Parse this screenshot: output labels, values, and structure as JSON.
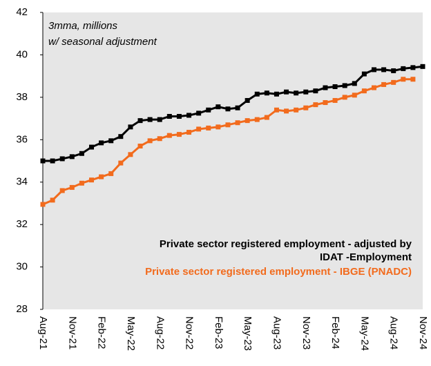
{
  "chart_data": {
    "type": "line",
    "annotations": [
      "3mma, millions",
      "w/ seasonal adjustment"
    ],
    "categories": [
      "Aug-21",
      null,
      null,
      "Nov-21",
      null,
      null,
      "Feb-22",
      null,
      null,
      "May-22",
      null,
      null,
      "Aug-22",
      null,
      null,
      "Nov-22",
      null,
      null,
      "Feb-23",
      null,
      null,
      "May-23",
      null,
      null,
      "Aug-23",
      null,
      null,
      "Nov-23",
      null,
      null,
      "Feb-24",
      null,
      null,
      "May-24",
      null,
      null,
      "Aug-24",
      null,
      null,
      "Nov-24"
    ],
    "series": [
      {
        "name": "Private sector registered employment - adjusted by IDAT -Employment",
        "color": "#000000",
        "values": [
          35.0,
          35.0,
          35.1,
          35.2,
          35.35,
          35.65,
          35.85,
          35.95,
          36.15,
          36.6,
          36.9,
          36.95,
          36.95,
          37.1,
          37.1,
          37.15,
          37.25,
          37.4,
          37.55,
          37.45,
          37.5,
          37.85,
          38.15,
          38.2,
          38.15,
          38.25,
          38.2,
          38.25,
          38.3,
          38.45,
          38.5,
          38.55,
          38.65,
          39.1,
          39.3,
          39.3,
          39.25,
          39.35,
          39.4,
          39.45
        ]
      },
      {
        "name": "Private sector registered employment - IBGE (PNADC)",
        "color": "#f26b1d",
        "values": [
          32.95,
          33.15,
          33.6,
          33.75,
          33.95,
          34.1,
          34.25,
          34.4,
          34.9,
          35.3,
          35.7,
          35.95,
          36.05,
          36.2,
          36.25,
          36.35,
          36.5,
          36.55,
          36.6,
          36.7,
          36.8,
          36.9,
          36.95,
          37.05,
          37.4,
          37.35,
          37.4,
          37.5,
          37.65,
          37.75,
          37.85,
          38.0,
          38.1,
          38.3,
          38.45,
          38.6,
          38.7,
          38.85,
          38.85,
          null
        ]
      }
    ],
    "ylim": [
      28,
      42
    ],
    "yticks": [
      28,
      30,
      32,
      34,
      36,
      38,
      40,
      42
    ],
    "legend": "lower right"
  }
}
